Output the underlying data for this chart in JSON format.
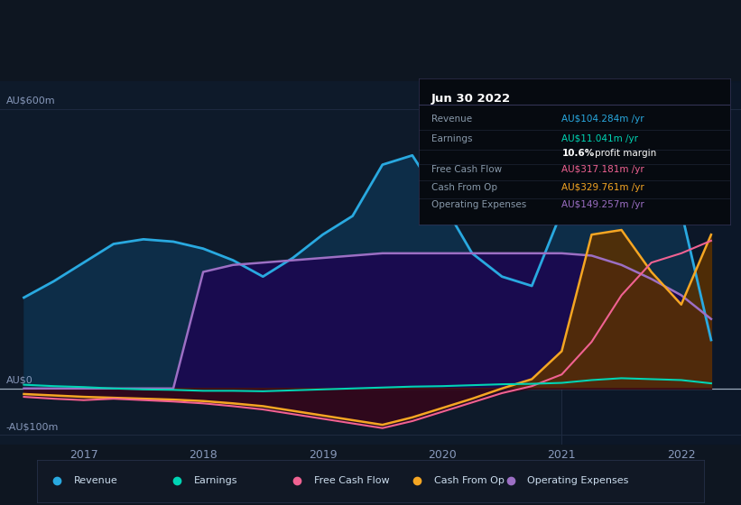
{
  "background_color": "#0e1621",
  "chart_bg": "#0e1a2a",
  "ylim": [
    -120,
    660
  ],
  "xtick_labels": [
    "2017",
    "2018",
    "2019",
    "2020",
    "2021",
    "2022"
  ],
  "x_positions": [
    1.0,
    2.0,
    3.0,
    4.0,
    5.0,
    6.0
  ],
  "series": {
    "revenue": {
      "color": "#29a9e0",
      "fill_color": "#0d2a3f",
      "label": "Revenue",
      "data_x": [
        0.5,
        0.75,
        1.0,
        1.25,
        1.5,
        1.75,
        2.0,
        2.25,
        2.5,
        2.75,
        3.0,
        3.25,
        3.5,
        3.75,
        4.0,
        4.25,
        4.5,
        4.75,
        5.0,
        5.25,
        5.5,
        5.75,
        6.0,
        6.25
      ],
      "data_y": [
        195,
        230,
        270,
        310,
        320,
        315,
        300,
        275,
        240,
        280,
        330,
        370,
        480,
        500,
        400,
        290,
        240,
        220,
        380,
        590,
        550,
        480,
        380,
        104
      ]
    },
    "earnings": {
      "color": "#00d4b4",
      "label": "Earnings",
      "data_x": [
        0.5,
        0.75,
        1.0,
        1.25,
        1.5,
        1.75,
        2.0,
        2.25,
        2.5,
        2.75,
        3.0,
        3.25,
        3.5,
        3.75,
        4.0,
        4.25,
        4.5,
        4.75,
        5.0,
        5.25,
        5.5,
        5.75,
        6.0,
        6.25
      ],
      "data_y": [
        8,
        5,
        3,
        0,
        -2,
        -3,
        -5,
        -5,
        -6,
        -4,
        -2,
        0,
        2,
        4,
        5,
        7,
        9,
        10,
        12,
        18,
        22,
        20,
        18,
        11
      ]
    },
    "free_cash_flow": {
      "color": "#f06292",
      "label": "Free Cash Flow",
      "data_x": [
        0.5,
        0.75,
        1.0,
        1.25,
        1.5,
        1.75,
        2.0,
        2.25,
        2.5,
        2.75,
        3.0,
        3.25,
        3.5,
        3.75,
        4.0,
        4.25,
        4.5,
        4.75,
        5.0,
        5.25,
        5.5,
        5.75,
        6.0,
        6.25
      ],
      "data_y": [
        -18,
        -22,
        -25,
        -22,
        -25,
        -28,
        -32,
        -38,
        -45,
        -55,
        -65,
        -75,
        -85,
        -70,
        -50,
        -30,
        -10,
        5,
        30,
        100,
        200,
        270,
        290,
        317
      ]
    },
    "cash_from_op": {
      "color": "#f5a623",
      "fill_color": "#6b3000",
      "label": "Cash From Op",
      "data_x": [
        0.5,
        0.75,
        1.0,
        1.25,
        1.5,
        1.75,
        2.0,
        2.25,
        2.5,
        2.75,
        3.0,
        3.25,
        3.5,
        3.75,
        4.0,
        4.25,
        4.5,
        4.75,
        5.0,
        5.25,
        5.5,
        5.75,
        6.0,
        6.25
      ],
      "data_y": [
        -12,
        -15,
        -18,
        -20,
        -22,
        -24,
        -27,
        -32,
        -38,
        -48,
        -58,
        -68,
        -78,
        -62,
        -42,
        -22,
        0,
        20,
        80,
        330,
        340,
        250,
        180,
        330
      ]
    },
    "operating_expenses": {
      "color": "#9c6fc4",
      "fill_color": "#1a0a4e",
      "label": "Operating Expenses",
      "data_x": [
        0.5,
        0.75,
        1.0,
        1.25,
        1.5,
        1.75,
        2.0,
        2.25,
        2.5,
        2.75,
        3.0,
        3.25,
        3.5,
        3.75,
        4.0,
        4.25,
        4.5,
        4.75,
        5.0,
        5.25,
        5.5,
        5.75,
        6.0,
        6.25
      ],
      "data_y": [
        0,
        0,
        0,
        0,
        0,
        0,
        250,
        265,
        270,
        275,
        280,
        285,
        290,
        290,
        290,
        290,
        290,
        290,
        290,
        285,
        265,
        235,
        200,
        149
      ]
    }
  },
  "infobox": {
    "title": "Jun 30 2022",
    "rows": [
      {
        "label": "Revenue",
        "value": "AU$104.284m /yr",
        "value_color": "#29a9e0"
      },
      {
        "label": "Earnings",
        "value": "AU$11.041m /yr",
        "value_color": "#00d4b4"
      },
      {
        "label": "",
        "value": "10.6% profit margin",
        "value_color": "#ffffff"
      },
      {
        "label": "Free Cash Flow",
        "value": "AU$317.181m /yr",
        "value_color": "#f06292"
      },
      {
        "label": "Cash From Op",
        "value": "AU$329.761m /yr",
        "value_color": "#f5a623"
      },
      {
        "label": "Operating Expenses",
        "value": "AU$149.257m /yr",
        "value_color": "#9c6fc4"
      }
    ]
  },
  "legend": [
    {
      "label": "Revenue",
      "color": "#29a9e0"
    },
    {
      "label": "Earnings",
      "color": "#00d4b4"
    },
    {
      "label": "Free Cash Flow",
      "color": "#f06292"
    },
    {
      "label": "Cash From Op",
      "color": "#f5a623"
    },
    {
      "label": "Operating Expenses",
      "color": "#9c6fc4"
    }
  ]
}
